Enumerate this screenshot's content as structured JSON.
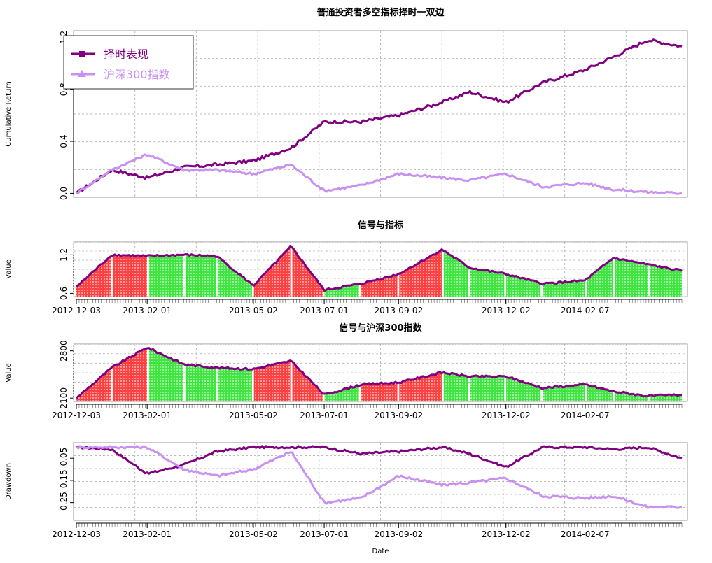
{
  "chart_data": [
    {
      "type": "line",
      "title": "普通投资者多空指标择时一双边",
      "ylabel": "Cumulative Return",
      "ylim": [
        -0.03,
        1.25
      ],
      "yticks": [
        "0.0",
        "0.4",
        "0.8",
        "1.2"
      ],
      "grid": true,
      "legend_position": "top-left",
      "x": [
        "2012-12-03",
        "2013-01-02",
        "2013-02-01",
        "2013-03-04",
        "2013-04-01",
        "2013-05-02",
        "2013-06-03",
        "2013-07-01",
        "2013-08-01",
        "2013-09-02",
        "2013-10-09",
        "2013-11-01",
        "2013-12-02",
        "2014-01-02",
        "2014-02-07",
        "2014-03-03",
        "2014-04-01",
        "2014-04-30"
      ],
      "series": [
        {
          "name": "择时表现",
          "color": "#800080",
          "values": [
            0.0,
            0.18,
            0.12,
            0.2,
            0.22,
            0.25,
            0.35,
            0.55,
            0.55,
            0.6,
            0.7,
            0.78,
            0.7,
            0.85,
            0.95,
            1.05,
            1.18,
            1.13
          ]
        },
        {
          "name": "沪深300指数",
          "color": "#C890F0",
          "values": [
            0.0,
            0.18,
            0.3,
            0.18,
            0.18,
            0.15,
            0.22,
            0.02,
            0.06,
            0.15,
            0.12,
            0.1,
            0.15,
            0.05,
            0.08,
            0.03,
            0.01,
            0.0
          ]
        }
      ]
    },
    {
      "type": "area",
      "title": "信号与指标",
      "ylabel": "Value",
      "ylim": [
        0.55,
        1.4
      ],
      "yticks": [
        "0.6",
        "1.2"
      ],
      "grid": true,
      "x_tick_labels": [
        "2012-12-03",
        "2013-02-01",
        "2013-05-02",
        "2013-07-01",
        "2013-09-02",
        "2013-12-02",
        "2014-02-07"
      ],
      "x": [
        "2012-12-03",
        "2013-01-02",
        "2013-02-01",
        "2013-03-04",
        "2013-04-01",
        "2013-05-02",
        "2013-06-03",
        "2013-07-01",
        "2013-08-01",
        "2013-09-02",
        "2013-10-09",
        "2013-11-01",
        "2013-12-02",
        "2014-01-02",
        "2014-02-07",
        "2014-03-03",
        "2014-04-01",
        "2014-04-30"
      ],
      "values": [
        0.7,
        1.2,
        1.18,
        1.2,
        1.18,
        0.72,
        1.33,
        0.65,
        0.75,
        0.9,
        1.28,
        1.0,
        0.9,
        0.75,
        0.8,
        1.15,
        1.05,
        0.95
      ],
      "signal": [
        "long",
        "long",
        "short",
        "short",
        "short",
        "long",
        "long",
        "short",
        "long",
        "long",
        "short",
        "short",
        "short",
        "short",
        "short",
        "short",
        "short",
        "short"
      ],
      "signal_colors": {
        "long": "#FF2020",
        "short": "#20E020"
      }
    },
    {
      "type": "area",
      "title": "信号与沪深300指数",
      "ylabel": "Value",
      "ylim": [
        2050,
        2900
      ],
      "yticks": [
        "2100",
        "2800"
      ],
      "grid": true,
      "x_tick_labels": [
        "2012-12-03",
        "2013-02-01",
        "2013-05-02",
        "2013-07-01",
        "2013-09-02",
        "2013-12-02",
        "2014-02-07"
      ],
      "x": [
        "2012-12-03",
        "2013-01-02",
        "2013-02-01",
        "2013-03-04",
        "2013-04-01",
        "2013-05-02",
        "2013-06-03",
        "2013-07-01",
        "2013-08-01",
        "2013-09-02",
        "2013-10-09",
        "2013-11-01",
        "2013-12-02",
        "2014-01-02",
        "2014-02-07",
        "2014-03-03",
        "2014-04-01",
        "2014-04-30"
      ],
      "values": [
        2100,
        2550,
        2850,
        2600,
        2550,
        2530,
        2650,
        2150,
        2300,
        2330,
        2480,
        2420,
        2420,
        2250,
        2300,
        2200,
        2130,
        2150
      ],
      "signal": [
        "long",
        "long",
        "short",
        "short",
        "short",
        "long",
        "long",
        "short",
        "long",
        "long",
        "short",
        "short",
        "short",
        "short",
        "short",
        "short",
        "short",
        "short"
      ],
      "signal_colors": {
        "long": "#FF2020",
        "short": "#20E020"
      }
    },
    {
      "type": "line",
      "ylabel": "Drawdown",
      "xlabel": "Date",
      "ylim": [
        -0.33,
        0.02
      ],
      "yticks": [
        "-0.25",
        "-0.15",
        "-0.05"
      ],
      "grid": true,
      "x_tick_labels": [
        "2012-12-03",
        "2013-02-01",
        "2013-05-02",
        "2013-07-01",
        "2013-09-02",
        "2013-12-02",
        "2014-02-07"
      ],
      "x": [
        "2012-12-03",
        "2013-01-02",
        "2013-02-01",
        "2013-03-04",
        "2013-04-01",
        "2013-05-02",
        "2013-06-03",
        "2013-07-01",
        "2013-08-01",
        "2013-09-02",
        "2013-10-09",
        "2013-11-01",
        "2013-12-02",
        "2014-01-02",
        "2014-02-07",
        "2014-03-03",
        "2014-04-01",
        "2014-04-30"
      ],
      "series": [
        {
          "name": "择时表现",
          "color": "#800080",
          "values": [
            0.0,
            -0.01,
            -0.12,
            -0.08,
            -0.02,
            0.0,
            0.0,
            0.0,
            -0.03,
            -0.02,
            0.0,
            -0.03,
            -0.09,
            0.0,
            0.0,
            -0.01,
            0.0,
            -0.05
          ]
        },
        {
          "name": "沪深300指数",
          "color": "#C890F0",
          "values": [
            0.0,
            0.0,
            0.0,
            -0.1,
            -0.13,
            -0.1,
            -0.02,
            -0.25,
            -0.23,
            -0.13,
            -0.17,
            -0.16,
            -0.14,
            -0.22,
            -0.23,
            -0.22,
            -0.27,
            -0.27
          ]
        }
      ]
    }
  ]
}
